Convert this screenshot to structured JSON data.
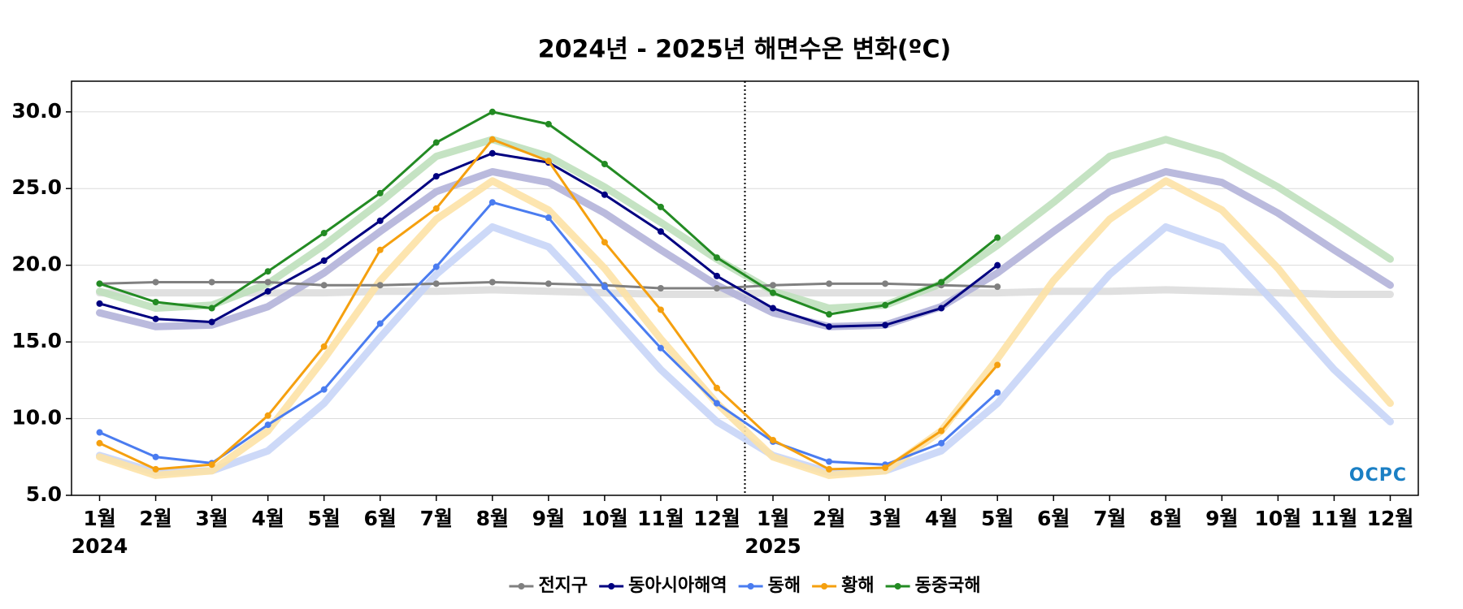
{
  "chart_data": {
    "type": "line",
    "title": "2024년 - 2025년 해면수온 변화(ºC)",
    "categories": [
      "1월",
      "2월",
      "3월",
      "4월",
      "5월",
      "6월",
      "7월",
      "8월",
      "9월",
      "10월",
      "11월",
      "12월",
      "1월",
      "2월",
      "3월",
      "4월",
      "5월",
      "6월",
      "7월",
      "8월",
      "9월",
      "10월",
      "11월",
      "12월"
    ],
    "x_groups": [
      {
        "label": "2024",
        "start": 0
      },
      {
        "label": "2025",
        "start": 12
      }
    ],
    "ylim": [
      5,
      32
    ],
    "yticks": [
      {
        "value": 5,
        "label": "5.0"
      },
      {
        "value": 10,
        "label": "10.0"
      },
      {
        "value": 15,
        "label": "15.0"
      },
      {
        "value": 20,
        "label": "20.0"
      },
      {
        "value": 25,
        "label": "25.0"
      },
      {
        "value": 30,
        "label": "30.0"
      }
    ],
    "grid": true,
    "legend": "bottom",
    "logo": "OCPC",
    "series": [
      {
        "name": "전지구",
        "color": "#808080",
        "values": [
          18.8,
          18.9,
          18.9,
          18.9,
          18.7,
          18.7,
          18.8,
          18.9,
          18.8,
          18.7,
          18.5,
          18.5,
          18.7,
          18.8,
          18.8,
          18.7,
          18.6,
          null,
          null,
          null,
          null,
          null,
          null,
          null
        ]
      },
      {
        "name": "동아시아해역",
        "color": "#000080",
        "values": [
          17.5,
          16.5,
          16.3,
          18.3,
          20.3,
          22.9,
          25.8,
          27.3,
          26.7,
          24.6,
          22.2,
          19.3,
          17.2,
          16.0,
          16.1,
          17.2,
          20.0,
          null,
          null,
          null,
          null,
          null,
          null,
          null
        ]
      },
      {
        "name": "동해",
        "color": "#4a7cf0",
        "values": [
          9.1,
          7.5,
          7.1,
          9.6,
          11.9,
          16.2,
          19.9,
          24.1,
          23.1,
          18.6,
          14.6,
          11.0,
          8.5,
          7.2,
          7.0,
          8.4,
          11.7,
          null,
          null,
          null,
          null,
          null,
          null,
          null
        ]
      },
      {
        "name": "황해",
        "color": "#f5a00f",
        "values": [
          8.4,
          6.7,
          7.0,
          10.2,
          14.7,
          21.0,
          23.7,
          28.2,
          26.8,
          21.5,
          17.1,
          12.0,
          8.6,
          6.7,
          6.8,
          9.2,
          13.5,
          null,
          null,
          null,
          null,
          null,
          null,
          null
        ]
      },
      {
        "name": "동중국해",
        "color": "#238b23",
        "values": [
          18.8,
          17.6,
          17.2,
          19.6,
          22.1,
          24.7,
          28.0,
          30.0,
          29.2,
          26.6,
          23.8,
          20.5,
          18.2,
          16.8,
          17.4,
          18.9,
          21.8,
          null,
          null,
          null,
          null,
          null,
          null,
          null
        ]
      }
    ],
    "climatology": [
      {
        "color": "#dddddd",
        "values": [
          18.2,
          18.2,
          18.2,
          18.2,
          18.2,
          18.3,
          18.3,
          18.4,
          18.3,
          18.2,
          18.1,
          18.1,
          18.2,
          18.2,
          18.2,
          18.2,
          18.2,
          18.3,
          18.3,
          18.4,
          18.3,
          18.2,
          18.1,
          18.1
        ]
      },
      {
        "color": "#b3b3d9",
        "values": [
          16.9,
          16.0,
          16.1,
          17.3,
          19.5,
          22.2,
          24.8,
          26.1,
          25.4,
          23.4,
          21.0,
          18.7,
          16.9,
          16.0,
          16.1,
          17.3,
          19.5,
          22.2,
          24.8,
          26.1,
          25.4,
          23.4,
          21.0,
          18.7
        ]
      },
      {
        "color": "#c8d5f7",
        "values": [
          7.6,
          6.5,
          6.6,
          7.9,
          11.0,
          15.3,
          19.4,
          22.5,
          21.2,
          17.3,
          13.2,
          9.8,
          7.6,
          6.5,
          6.6,
          7.9,
          11.0,
          15.3,
          19.4,
          22.5,
          21.2,
          17.3,
          13.2,
          9.8
        ]
      },
      {
        "color": "#fde2a6",
        "values": [
          7.5,
          6.3,
          6.6,
          9.2,
          13.9,
          19.0,
          23.0,
          25.5,
          23.6,
          19.8,
          15.2,
          11.0,
          7.5,
          6.3,
          6.6,
          9.2,
          13.9,
          19.0,
          23.0,
          25.5,
          23.6,
          19.8,
          15.2,
          11.0
        ]
      },
      {
        "color": "#bfe0bc",
        "values": [
          18.3,
          17.2,
          17.4,
          18.8,
          21.3,
          24.1,
          27.1,
          28.2,
          27.1,
          25.1,
          22.8,
          20.4,
          18.3,
          17.2,
          17.4,
          18.8,
          21.3,
          24.1,
          27.1,
          28.2,
          27.1,
          25.1,
          22.8,
          20.4
        ]
      }
    ]
  }
}
